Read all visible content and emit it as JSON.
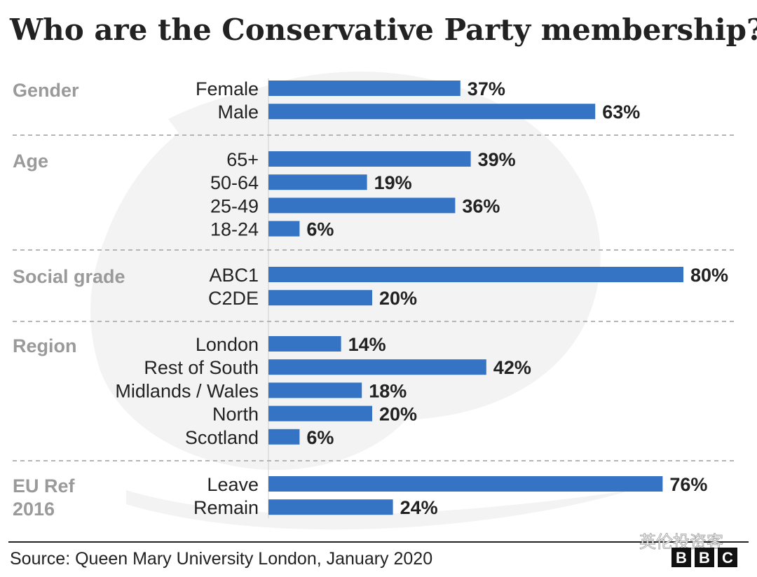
{
  "chart_data": {
    "type": "bar",
    "orientation": "horizontal",
    "title": "Who are the Conservative Party membership?",
    "unit": "%",
    "xlim": [
      0,
      80
    ],
    "groups": [
      {
        "name": "Gender",
        "categories": [
          "Female",
          "Male"
        ],
        "values": [
          37,
          63
        ]
      },
      {
        "name": "Age",
        "categories": [
          "65+",
          "50-64",
          "25-49",
          "18-24"
        ],
        "values": [
          39,
          19,
          36,
          6
        ]
      },
      {
        "name": "Social grade",
        "categories": [
          "ABC1",
          "C2DE"
        ],
        "values": [
          80,
          20
        ]
      },
      {
        "name": "Region",
        "categories": [
          "London",
          "Rest of South",
          "Midlands / Wales",
          "North",
          "Scotland"
        ],
        "values": [
          14,
          42,
          18,
          20,
          6
        ]
      },
      {
        "name": "EU Ref 2016",
        "categories": [
          "Leave",
          "Remain"
        ],
        "values": [
          76,
          24
        ]
      }
    ],
    "source": "Source: Queen Mary University London, January 2020"
  },
  "watermark": "英伦投资客",
  "logo": [
    "B",
    "B",
    "C"
  ],
  "colors": {
    "bar": "#3573c5",
    "text": "#222222",
    "group_label": "#9a9a9a",
    "divider": "#b5b5b5",
    "background_art": "#f3f3f3"
  }
}
